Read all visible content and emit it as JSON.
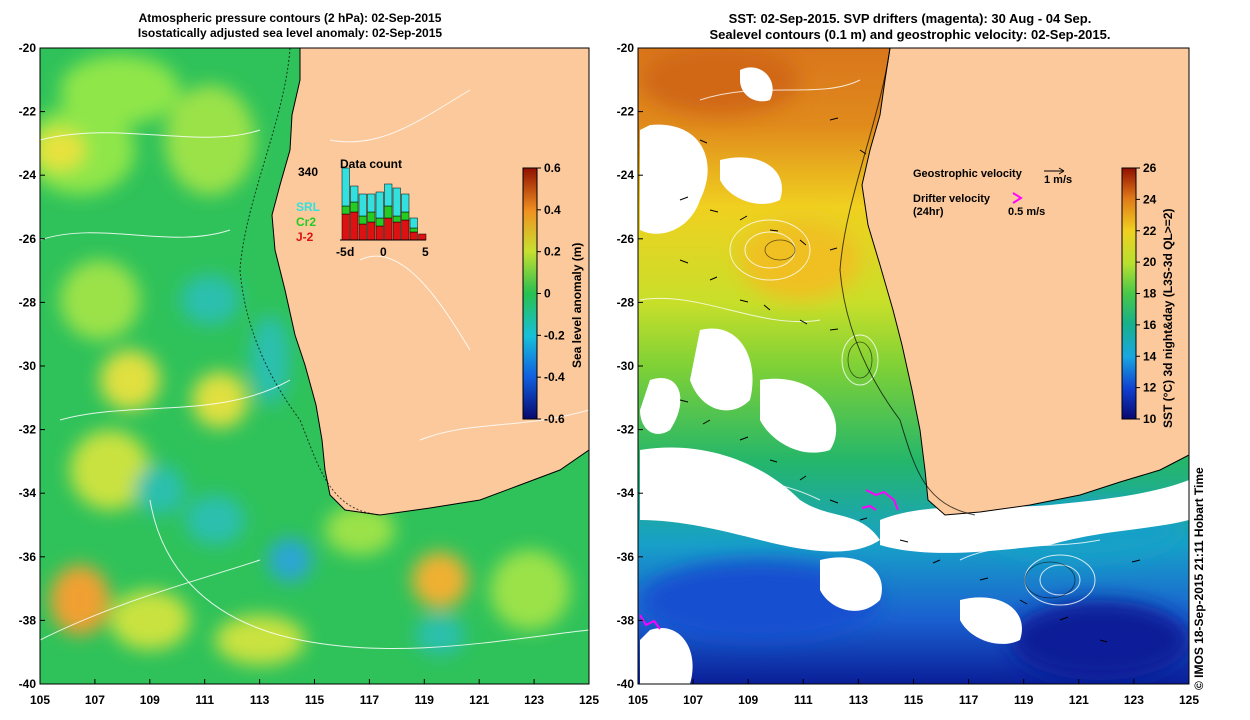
{
  "left_panel": {
    "title_line1": "Atmospheric pressure contours (2 hPa): 02-Sep-2015",
    "title_line2": "Isostatically adjusted sea level anomaly: 02-Sep-2015",
    "colorbar_label": "Sea level anomaly (m)",
    "colorbar_ticks": [
      "0.6",
      "0.4",
      "0.2",
      "0",
      "-0.2",
      "-0.4",
      "-0.6"
    ],
    "inset": {
      "title": "Data count",
      "max_label": "340",
      "legend": [
        {
          "name": "SRL",
          "color": "#33e0e0"
        },
        {
          "name": "Cr2",
          "color": "#22cc22"
        },
        {
          "name": "J-2",
          "color": "#dd1111"
        }
      ],
      "x_ticks": [
        "-5",
        "d",
        "0",
        "5"
      ]
    }
  },
  "right_panel": {
    "title_line1": "SST: 02-Sep-2015. SVP drifters (magenta): 30 Aug - 04 Sep.",
    "title_line2": "Sealevel contours (0.1 m) and geostrophic velocity: 02-Sep-2015.",
    "colorbar_label": "SST (°C) 3d night&day (L3S-3d QL>=2)",
    "colorbar_ticks": [
      "26",
      "24",
      "22",
      "20",
      "18",
      "16",
      "14",
      "12",
      "10"
    ],
    "legend_geo": "Geostrophic velocity",
    "legend_geo_unit": "1 m/s",
    "legend_drifter": "Drifter velocity",
    "legend_drifter_sub": "(24hr)",
    "legend_drifter_unit": "0.5 m/s"
  },
  "axes": {
    "y_ticks": [
      "-20",
      "-22",
      "-24",
      "-26",
      "-28",
      "-30",
      "-32",
      "-34",
      "-36",
      "-38",
      "-40"
    ],
    "x_ticks": [
      "105",
      "107",
      "109",
      "111",
      "113",
      "115",
      "117",
      "119",
      "121",
      "123",
      "125"
    ]
  },
  "copyright": "© IMOS 18-Sep-2015 21:11 Hobart Time",
  "colors": {
    "land": "#fbc99b",
    "ocean_left": "#2fc25a",
    "text": "#000000"
  }
}
